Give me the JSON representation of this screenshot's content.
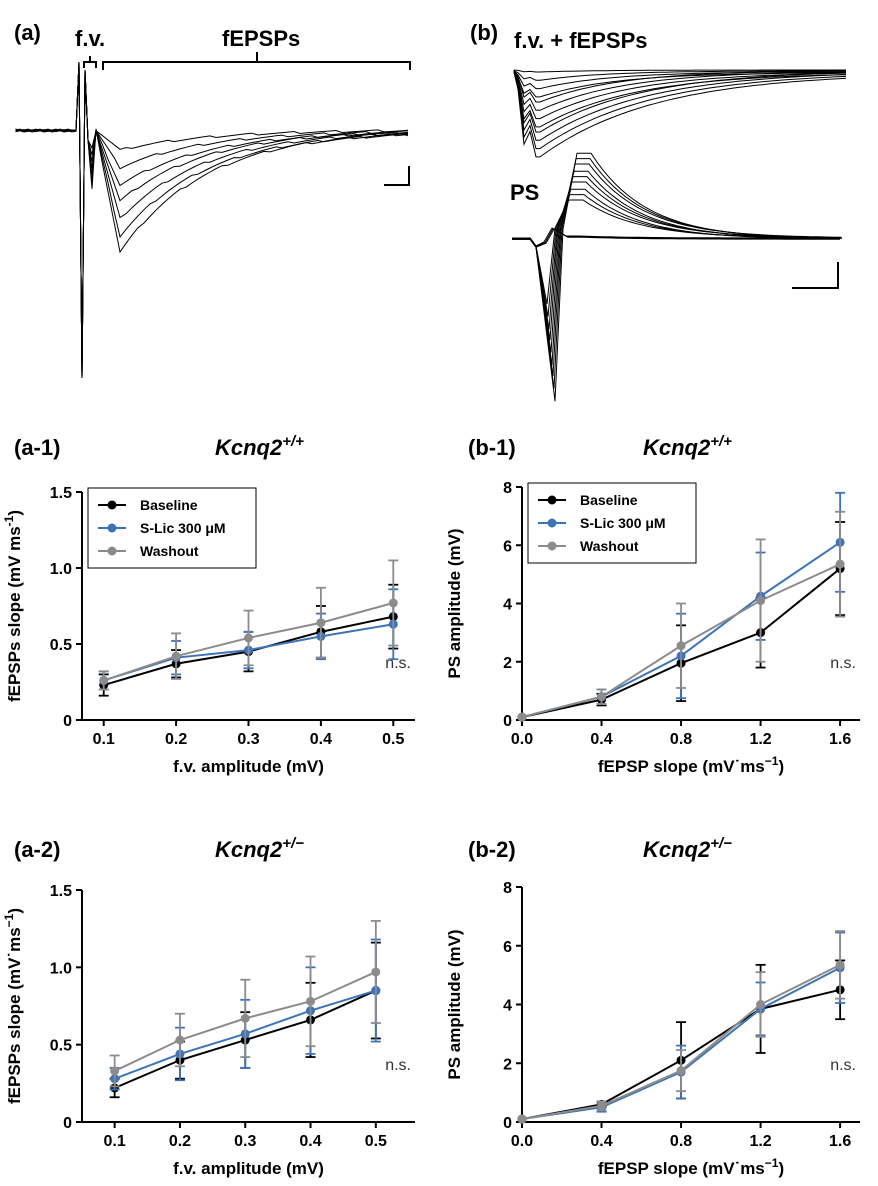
{
  "traces": {
    "a": {
      "label": "(a)",
      "fv_label": "f.v.",
      "fepsp_label": "fEPSPs"
    },
    "b": {
      "label": "(b)",
      "top_label": "f.v. + fEPSPs",
      "ps_label": "PS"
    }
  },
  "colors": {
    "Baseline": "#000000",
    "S-Lic 300 μM": "#3d74b9",
    "Washout": "#8c8c8c"
  },
  "chart_data": [
    {
      "id": "a1",
      "panel_label": "(a-1)",
      "title_base": "Kcnq2",
      "title_sup": "+/+",
      "type": "line",
      "xlabel": "f.v. amplitude (mV)",
      "ylabel": "fEPSPs slope (mV ms",
      "ylabel_sup": "-1",
      "ylabel_tail": ")",
      "xlim": [
        0.07,
        0.53
      ],
      "ylim": [
        0,
        1.5
      ],
      "xticks": [
        "0.1",
        "0.2",
        "0.3",
        "0.4",
        "0.5"
      ],
      "yticks": [
        "0",
        "0.5",
        "1.0",
        "1.5"
      ],
      "x": [
        0.1,
        0.2,
        0.3,
        0.4,
        0.5
      ],
      "annotation": "n.s.",
      "legend": true,
      "series": [
        {
          "name": "Baseline",
          "values": [
            0.23,
            0.37,
            0.45,
            0.58,
            0.68
          ],
          "err": [
            0.07,
            0.09,
            0.13,
            0.17,
            0.21
          ]
        },
        {
          "name": "S-Lic 300 μM",
          "values": [
            0.26,
            0.41,
            0.46,
            0.55,
            0.63
          ],
          "err": [
            0.06,
            0.11,
            0.12,
            0.15,
            0.23
          ]
        },
        {
          "name": "Washout",
          "values": [
            0.26,
            0.42,
            0.54,
            0.64,
            0.77
          ],
          "err": [
            0.06,
            0.15,
            0.18,
            0.23,
            0.28
          ]
        }
      ]
    },
    {
      "id": "b1",
      "panel_label": "(b-1)",
      "title_base": "Kcnq2",
      "title_sup": "+/+",
      "type": "line",
      "xlabel": "fEPSP slope (mV˙ms",
      "xlabel_sup": "−1",
      "xlabel_tail": ")",
      "ylabel": "PS amplitude (mV)",
      "xlim": [
        0,
        1.7
      ],
      "ylim": [
        0,
        8
      ],
      "xticks": [
        "0.0",
        "0.4",
        "0.8",
        "1.2",
        "1.6"
      ],
      "yticks": [
        "0",
        "2",
        "4",
        "6",
        "8"
      ],
      "x": [
        0,
        0.4,
        0.8,
        1.2,
        1.6
      ],
      "annotation": "n.s.",
      "legend": true,
      "series": [
        {
          "name": "Baseline",
          "values": [
            0.1,
            0.7,
            1.95,
            3.0,
            5.2
          ],
          "err": [
            0,
            0.2,
            1.3,
            1.2,
            1.6
          ]
        },
        {
          "name": "S-Lic 300 μM",
          "values": [
            0.1,
            0.8,
            2.2,
            4.25,
            6.1
          ],
          "err": [
            0,
            0.25,
            1.45,
            1.5,
            1.7
          ]
        },
        {
          "name": "Washout",
          "values": [
            0.1,
            0.8,
            2.55,
            4.1,
            5.35
          ],
          "err": [
            0,
            0.25,
            1.45,
            2.1,
            1.8
          ]
        }
      ]
    },
    {
      "id": "a2",
      "panel_label": "(a-2)",
      "title_base": "Kcnq2",
      "title_sup": "+/−",
      "type": "line",
      "xlabel": "f.v. amplitude (mV)",
      "ylabel": "fEPSPs slope (mV˙ms",
      "ylabel_sup": "−1",
      "ylabel_tail": ")",
      "xlim": [
        0.05,
        0.56
      ],
      "ylim": [
        0,
        1.5
      ],
      "xticks": [
        "0.1",
        "0.2",
        "0.3",
        "0.4",
        "0.5"
      ],
      "yticks": [
        "0",
        "0.5",
        "1.0",
        "1.5"
      ],
      "x": [
        0.1,
        0.2,
        0.3,
        0.4,
        0.5
      ],
      "annotation": "n.s.",
      "legend": false,
      "series": [
        {
          "name": "Baseline",
          "values": [
            0.22,
            0.4,
            0.53,
            0.66,
            0.85
          ],
          "err": [
            0.06,
            0.12,
            0.18,
            0.24,
            0.31
          ]
        },
        {
          "name": "S-Lic 300 μM",
          "values": [
            0.28,
            0.44,
            0.57,
            0.72,
            0.85
          ],
          "err": [
            0.07,
            0.17,
            0.22,
            0.28,
            0.33
          ]
        },
        {
          "name": "Washout",
          "values": [
            0.33,
            0.53,
            0.67,
            0.78,
            0.97
          ],
          "err": [
            0.1,
            0.17,
            0.25,
            0.29,
            0.33
          ]
        }
      ]
    },
    {
      "id": "b2",
      "panel_label": "(b-2)",
      "title_base": "Kcnq2",
      "title_sup": "+/−",
      "type": "line",
      "xlabel": "fEPSP slope (mV˙ms",
      "xlabel_sup": "−1",
      "xlabel_tail": ")",
      "ylabel": "PS amplitude (mV)",
      "xlim": [
        0,
        1.7
      ],
      "ylim": [
        0,
        8
      ],
      "xticks": [
        "0.0",
        "0.4",
        "0.8",
        "1.2",
        "1.6"
      ],
      "yticks": [
        "0",
        "2",
        "4",
        "6",
        "8"
      ],
      "x": [
        0,
        0.4,
        0.8,
        1.2,
        1.6
      ],
      "annotation": "n.s.",
      "legend": false,
      "series": [
        {
          "name": "Baseline",
          "values": [
            0.1,
            0.6,
            2.1,
            3.85,
            4.5
          ],
          "err": [
            0,
            0.1,
            1.3,
            1.5,
            1.0
          ]
        },
        {
          "name": "S-Lic 300 μM",
          "values": [
            0.1,
            0.5,
            1.7,
            3.85,
            5.25
          ],
          "err": [
            0,
            0.15,
            0.9,
            0.9,
            1.2
          ]
        },
        {
          "name": "Washout",
          "values": [
            0.1,
            0.55,
            1.75,
            4.0,
            5.35
          ],
          "err": [
            0,
            0.15,
            0.7,
            1.1,
            1.15
          ]
        }
      ]
    }
  ]
}
